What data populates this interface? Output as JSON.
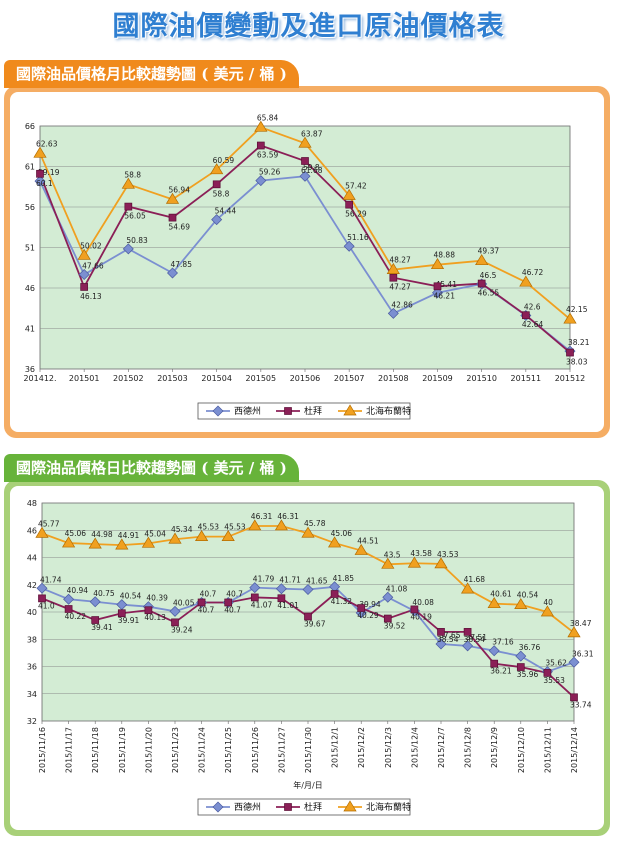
{
  "page_title": "國際油價變動及進口原油價格表",
  "chart_data": [
    {
      "type": "line",
      "title": "國際油品價格月比較趨勢圖 ( 美元 / 桶 )",
      "xlabel": "",
      "categories": [
        "201412.",
        "201501",
        "201502",
        "201503",
        "201504",
        "201505",
        "201506",
        "201507",
        "201508",
        "201509",
        "201510",
        "201511",
        "201512"
      ],
      "ylim": [
        36,
        66
      ],
      "yticks": [
        36,
        41,
        46,
        51,
        56,
        61,
        66
      ],
      "grid": true,
      "legend_position": "bottom",
      "series": [
        {
          "name": "西德州",
          "color": "#7b8fd1",
          "marker": "diamond",
          "values": [
            59.19,
            47.66,
            50.83,
            47.85,
            54.44,
            59.26,
            59.8,
            51.16,
            42.86,
            45.41,
            46.5,
            42.6,
            38.21
          ],
          "labels": [
            "59.19",
            "47.66",
            "50.83",
            "47.85",
            "54.44",
            "59.26",
            "59.8",
            "51.16",
            "42.86",
            "45.41",
            "46.5",
            "42.6",
            "38.21"
          ]
        },
        {
          "name": "杜拜",
          "color": "#8b1f57",
          "marker": "square",
          "values": [
            60.1,
            46.13,
            56.05,
            54.69,
            58.8,
            63.59,
            61.68,
            56.29,
            47.27,
            46.21,
            46.55,
            42.64,
            38.03
          ],
          "labels": [
            "60.1",
            "46.13",
            "56.05",
            "54.69",
            "58.8",
            "63.59",
            "61.68",
            "56.29",
            "47.27",
            "46.21",
            "46.55",
            "42.64",
            "38.03"
          ]
        },
        {
          "name": "北海布蘭特",
          "color": "#f0a020",
          "marker": "triangle",
          "values": [
            62.63,
            50.02,
            58.8,
            56.94,
            60.59,
            65.84,
            63.87,
            57.42,
            48.27,
            48.88,
            49.37,
            46.72,
            42.15
          ],
          "labels": [
            "62.63",
            "50.02",
            "58.8",
            "56.94",
            "60.59",
            "65.84",
            "63.87",
            "57.42",
            "48.27",
            "48.88",
            "49.37",
            "46.72",
            "42.15"
          ]
        }
      ]
    },
    {
      "type": "line",
      "title": "國際油品價格日比較趨勢圖 ( 美元 / 桶 )",
      "xlabel": "年/月/日",
      "categories": [
        "2015/11/16",
        "2015/11/17",
        "2015/11/18",
        "2015/11/19",
        "2015/11/20",
        "2015/11/23",
        "2015/11/24",
        "2015/11/25",
        "2015/11/26",
        "2015/11/27",
        "2015/11/30",
        "2015/12/1",
        "2015/12/2",
        "2015/12/3",
        "2015/12/4",
        "2015/12/7",
        "2015/12/8",
        "2015/12/9",
        "2015/12/10",
        "2015/12/11",
        "2015/12/14"
      ],
      "ylim": [
        32,
        48
      ],
      "yticks": [
        32,
        34,
        36,
        38,
        40,
        42,
        44,
        46,
        48
      ],
      "grid": true,
      "legend_position": "bottom",
      "series": [
        {
          "name": "西德州",
          "color": "#7b8fd1",
          "marker": "diamond",
          "values": [
            41.74,
            40.94,
            40.75,
            40.54,
            40.39,
            40.05,
            40.7,
            40.7,
            41.79,
            41.71,
            41.65,
            41.85,
            39.94,
            41.08,
            40.08,
            37.65,
            37.51,
            37.16,
            36.76,
            35.62,
            36.31
          ],
          "labels": [
            "41.74",
            "40.94",
            "40.75",
            "40.54",
            "40.39",
            "40.05",
            "40.7",
            "40.7",
            "41.79",
            "41.71",
            "41.65",
            "41.85",
            "39.94",
            "41.08",
            "40.08",
            "37.65",
            "37.51",
            "37.16",
            "36.76",
            "35.62",
            "36.31"
          ]
        },
        {
          "name": "杜拜",
          "color": "#8b1f57",
          "marker": "square",
          "values": [
            41.0,
            40.22,
            39.41,
            39.91,
            40.13,
            39.24,
            40.7,
            40.7,
            41.07,
            41.01,
            39.67,
            41.32,
            40.29,
            39.52,
            40.19,
            38.54,
            38.54,
            36.21,
            35.96,
            35.53,
            33.74
          ],
          "labels": [
            "41.0",
            "40.22",
            "39.41",
            "39.91",
            "40.13",
            "39.24",
            "40.7",
            "40.7",
            "41.07",
            "41.01",
            "39.67",
            "41.32",
            "40.29",
            "39.52",
            "40.19",
            "38.54",
            "38.54",
            "36.21",
            "35.96",
            "35.53",
            "33.74"
          ]
        },
        {
          "name": "北海布蘭特",
          "color": "#f0a020",
          "marker": "triangle",
          "values": [
            45.77,
            45.06,
            44.98,
            44.91,
            45.04,
            45.34,
            45.53,
            45.53,
            46.31,
            46.31,
            45.78,
            45.06,
            44.51,
            43.5,
            43.58,
            43.53,
            41.68,
            40.61,
            40.54,
            40.0,
            38.47
          ],
          "labels": [
            "45.77",
            "45.06",
            "44.98",
            "44.91",
            "45.04",
            "45.34",
            "45.53",
            "45.53",
            "46.31",
            "46.31",
            "45.78",
            "45.06",
            "44.51",
            "43.5",
            "43.58",
            "43.53",
            "41.68",
            "40.61",
            "40.54",
            "40",
            "38.47"
          ]
        }
      ]
    }
  ]
}
